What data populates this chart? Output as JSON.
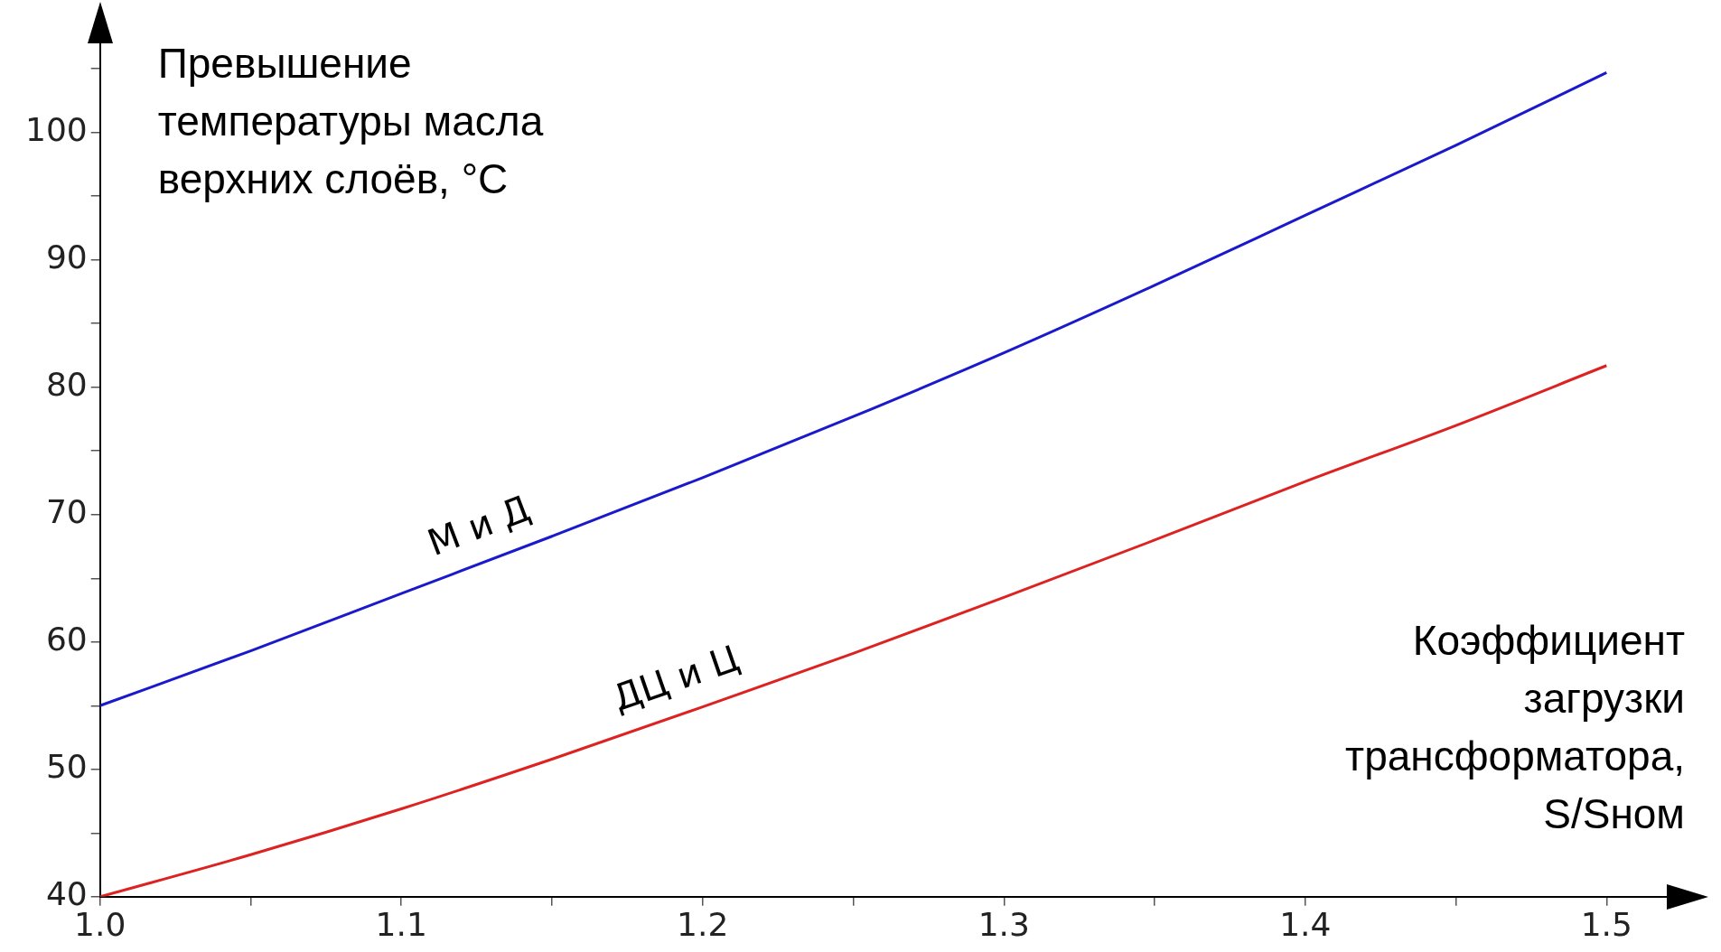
{
  "chart_data": {
    "type": "line",
    "ylabel": "Превышение температуры масла верхних слоёв, °C",
    "xlabel": "Коэффициент загрузки трансформатора, S/Sном",
    "x": [
      1.0,
      1.05,
      1.1,
      1.15,
      1.2,
      1.25,
      1.3,
      1.35,
      1.4,
      1.45,
      1.5
    ],
    "series": [
      {
        "name": "М и Д",
        "color": "#1a1acc",
        "values": [
          55,
          59.3,
          63.8,
          68.3,
          72.9,
          77.7,
          82.7,
          88,
          93.5,
          99,
          104.7
        ]
      },
      {
        "name": "ДЦ и Ц",
        "color": "#dd2222",
        "values": [
          40,
          43.3,
          46.9,
          50.8,
          54.9,
          59.1,
          63.5,
          68,
          72.6,
          77,
          81.7
        ]
      }
    ],
    "xlim": [
      1.0,
      1.52
    ],
    "ylim": [
      40,
      107
    ],
    "xticks": [
      {
        "value": 1.0,
        "label": "1.0"
      },
      {
        "value": 1.05,
        "label": null
      },
      1.1,
      {
        "value": 1.15,
        "label": null
      },
      1.2,
      {
        "value": 1.25,
        "label": null
      },
      1.3,
      {
        "value": 1.35,
        "label": null
      },
      1.4,
      {
        "value": 1.45,
        "label": null
      },
      1.5
    ],
    "yticks": [
      40,
      {
        "value": 45,
        "label": null
      },
      50,
      {
        "value": 55,
        "label": null
      },
      60,
      {
        "value": 65,
        "label": null
      },
      70,
      {
        "value": 75,
        "label": null
      },
      80,
      {
        "value": 85,
        "label": null
      },
      90,
      {
        "value": 95,
        "label": null
      },
      100,
      {
        "value": 105,
        "label": null
      }
    ],
    "grid": false,
    "legend": false,
    "marker": "none",
    "line_style": "solid"
  }
}
